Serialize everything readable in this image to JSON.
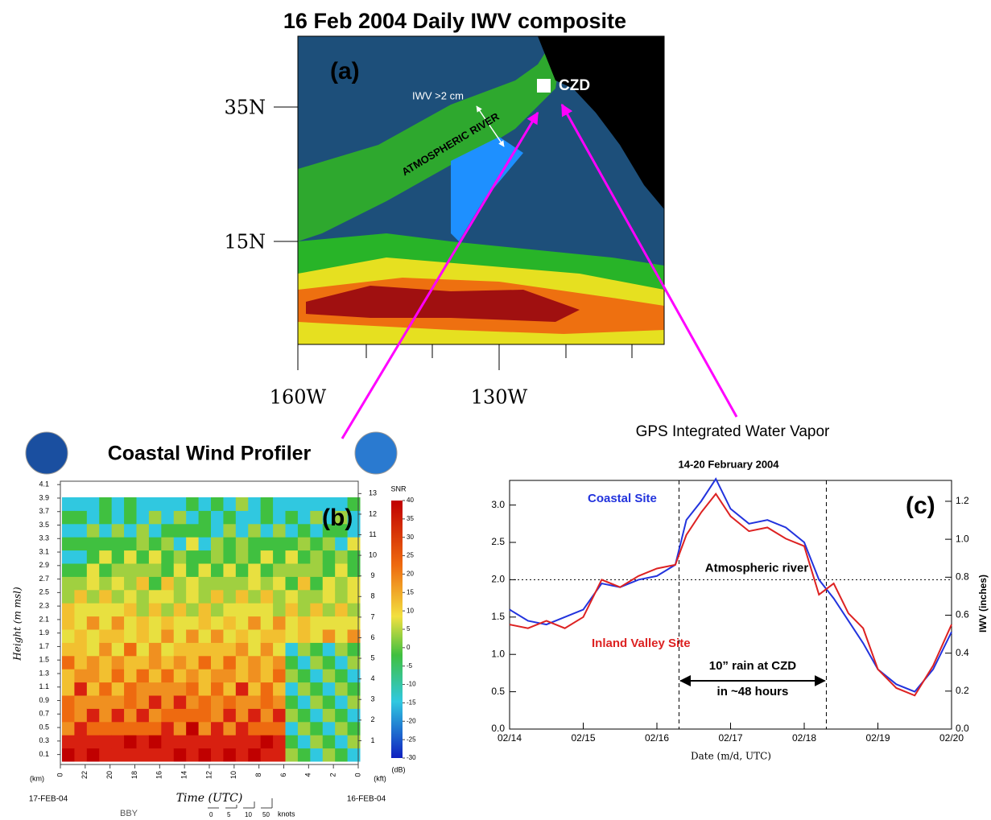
{
  "map": {
    "title": "16 Feb 2004 Daily IWV composite",
    "panel": "(a)",
    "site": "CZD",
    "band_label": "IWV >2 cm",
    "river_label": "ATMOSPHERIC RIVER",
    "lat_ticks": [
      "35N",
      "15N"
    ],
    "lon_ticks": [
      "160W",
      "130W"
    ]
  },
  "profiler": {
    "title": "Coastal Wind Profiler",
    "panel": "(b)",
    "ylabel": "Height (m msl)",
    "xlabel": "Time (UTC)",
    "ylim": [
      0,
      4.15
    ],
    "yticks": [
      0.1,
      0.3,
      0.5,
      0.7,
      0.9,
      1.1,
      1.3,
      1.5,
      1.7,
      1.9,
      2.1,
      2.3,
      2.5,
      2.7,
      2.9,
      3.1,
      3.3,
      3.5,
      3.7,
      3.9,
      4.1
    ],
    "y2lim": [
      0,
      13.6
    ],
    "y2ticks": [
      1,
      2,
      3,
      4,
      5,
      6,
      7,
      8,
      9,
      10,
      11,
      12,
      13
    ],
    "y_unit": "(km)",
    "y2_unit": "(kft)",
    "time_ticks": [
      0,
      22,
      20,
      18,
      16,
      14,
      12,
      10,
      8,
      6,
      4,
      2,
      0
    ],
    "start_date": "17-FEB-04",
    "end_date": "16-FEB-04",
    "station": "BBY",
    "colorbar_title": "SNR",
    "colorbar_unit": "(dB)",
    "colorbar_ticks": [
      40,
      35,
      30,
      25,
      20,
      15,
      10,
      5,
      0,
      -5,
      -10,
      -15,
      -20,
      -25,
      -30
    ],
    "wind_ticks": [
      0,
      5,
      10,
      50
    ],
    "wind_unit": "knots"
  },
  "chart_data": {
    "type": "line",
    "title": "GPS Integrated Water Vapor",
    "subtitle": "14-20 February 2004",
    "panel": "(c)",
    "xlabel": "Date (m/d, UTC)",
    "y2label": "IWV (inches)",
    "xlim": [
      0,
      6
    ],
    "xticks": [
      {
        "value": 0,
        "label": "02/14"
      },
      {
        "value": 1,
        "label": "02/15"
      },
      {
        "value": 2,
        "label": "02/16"
      },
      {
        "value": 3,
        "label": "02/17"
      },
      {
        "value": 4,
        "label": "02/18"
      },
      {
        "value": 5,
        "label": "02/19"
      },
      {
        "value": 6,
        "label": "02/20"
      }
    ],
    "ylim": [
      0,
      3.33
    ],
    "yticks": [
      {
        "value": 0,
        "label": "0.0"
      },
      0.5,
      {
        "value": 1,
        "label": "1.0"
      },
      1.5,
      {
        "value": 2,
        "label": "2.0"
      },
      2.5,
      {
        "value": 3,
        "label": "3.0"
      }
    ],
    "y2lim": [
      0,
      1.31
    ],
    "y2ticks": [
      {
        "value": 0,
        "label": "0.0"
      },
      0.2,
      0.4,
      0.6,
      0.8,
      {
        "value": 1,
        "label": "1.0"
      },
      1.2
    ],
    "threshold": 2,
    "threshold_label": "Atmospheric river",
    "event_bounds": [
      2.3,
      4.3
    ],
    "event_labels": [
      "10” rain at CZD",
      "in ~48 hours"
    ],
    "series": [
      {
        "name": "Coastal Site",
        "color": "#2233dd",
        "x": [
          0,
          0.25,
          0.5,
          0.75,
          1,
          1.25,
          1.5,
          1.75,
          2,
          2.25,
          2.4,
          2.6,
          2.8,
          3,
          3.25,
          3.5,
          3.75,
          4,
          4.2,
          4.4,
          4.6,
          4.8,
          5,
          5.25,
          5.5,
          5.75,
          6
        ],
        "values": [
          1.6,
          1.45,
          1.4,
          1.5,
          1.6,
          1.95,
          1.9,
          2.0,
          2.05,
          2.2,
          2.8,
          3.05,
          3.35,
          2.95,
          2.75,
          2.8,
          2.7,
          2.5,
          2.0,
          1.75,
          1.45,
          1.15,
          0.8,
          0.6,
          0.5,
          0.8,
          1.3
        ]
      },
      {
        "name": "Inland Valley Site",
        "color": "#dd2222",
        "x": [
          0,
          0.25,
          0.5,
          0.75,
          1,
          1.25,
          1.5,
          1.75,
          2,
          2.25,
          2.4,
          2.6,
          2.8,
          3,
          3.25,
          3.5,
          3.75,
          4,
          4.2,
          4.4,
          4.6,
          4.8,
          5,
          5.25,
          5.5,
          5.75,
          6
        ],
        "values": [
          1.4,
          1.35,
          1.45,
          1.35,
          1.5,
          2.0,
          1.9,
          2.05,
          2.15,
          2.2,
          2.6,
          2.9,
          3.15,
          2.85,
          2.65,
          2.7,
          2.55,
          2.45,
          1.8,
          1.95,
          1.55,
          1.35,
          0.8,
          0.55,
          0.45,
          0.85,
          1.4
        ]
      }
    ]
  }
}
